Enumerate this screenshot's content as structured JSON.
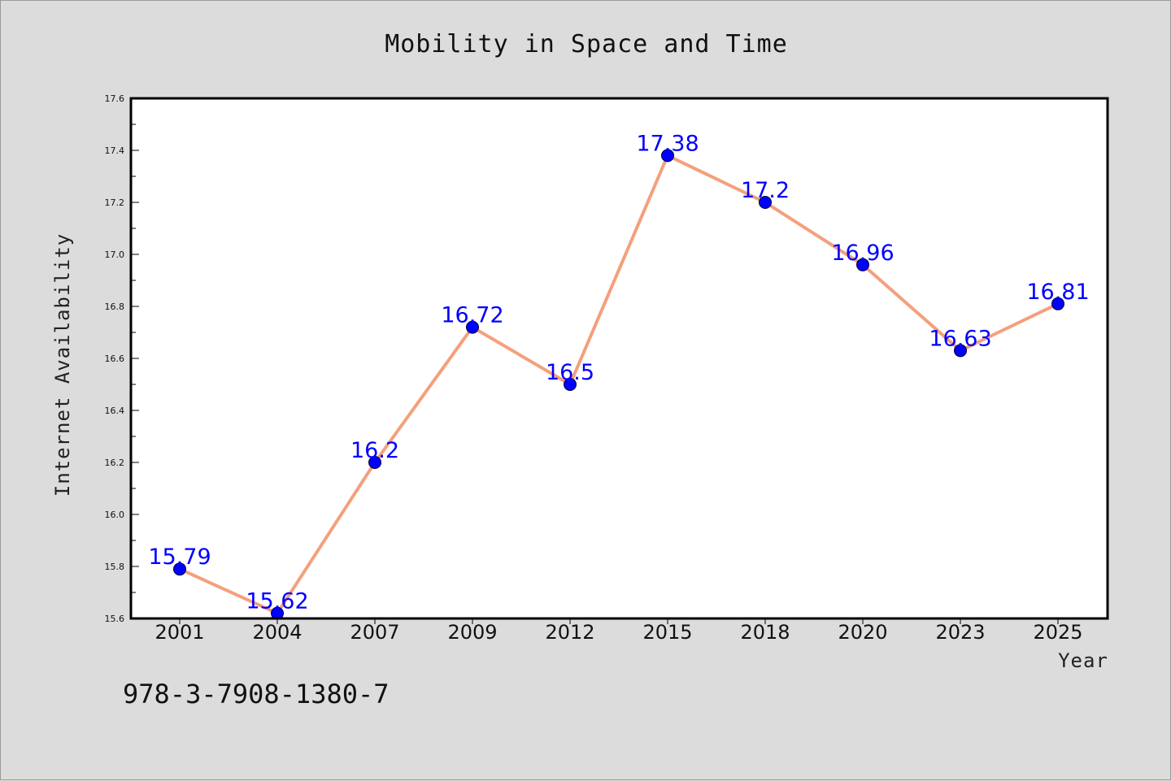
{
  "figure": {
    "annotation": "978-3-7908-1380-7"
  },
  "chart_data": {
    "type": "line",
    "title": "Mobility in Space and Time",
    "xlabel": "Year",
    "ylabel": "Internet Availability",
    "categories": [
      "2001",
      "2004",
      "2007",
      "2009",
      "2012",
      "2015",
      "2018",
      "2020",
      "2023",
      "2025"
    ],
    "series": [
      {
        "values": [
          15.79,
          15.62,
          16.2,
          16.72,
          16.5,
          17.38,
          17.2,
          16.96,
          16.63,
          16.81
        ],
        "data_labels": [
          "15.79",
          "15.62",
          "16.2",
          "16.72",
          "16.5",
          "17.38",
          "17.2",
          "16.96",
          "16.63",
          "16.81"
        ],
        "line_color": "#f4a07c",
        "marker_color": "#0000ff"
      }
    ],
    "ylim": [
      15.6,
      17.6
    ],
    "yticks": [
      "15.6",
      "15.8",
      "16.0",
      "16.2",
      "16.4",
      "16.6",
      "16.8",
      "17.0",
      "17.2",
      "17.4",
      "17.6"
    ],
    "grid": false,
    "legend": "none",
    "colors": {
      "background": "#dcdcdc",
      "plot_background": "#ffffff",
      "axes": "#000000"
    }
  }
}
